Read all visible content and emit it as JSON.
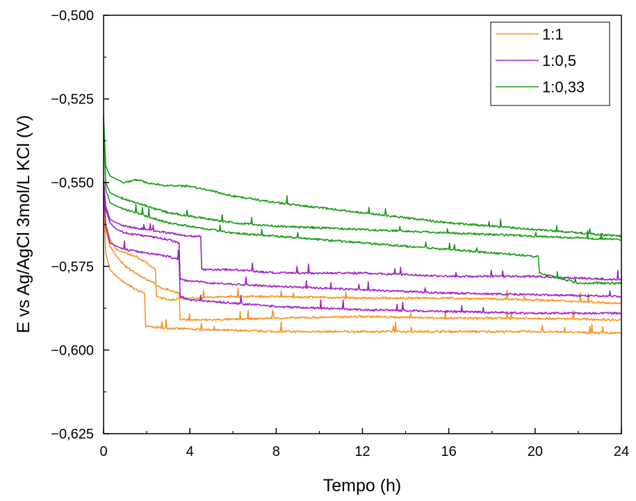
{
  "chart_data": {
    "type": "line",
    "title": "",
    "xlabel": "Tempo (h)",
    "ylabel": "E vs Ag/AgCl 3mol/L KCl (V)",
    "xlim": [
      0,
      24
    ],
    "ylim": [
      -0.625,
      -0.5
    ],
    "x_ticks": [
      0,
      4,
      8,
      12,
      16,
      20,
      24
    ],
    "x_tick_labels": [
      "0",
      "4",
      "8",
      "12",
      "16",
      "20",
      "24"
    ],
    "y_ticks": [
      -0.5,
      -0.525,
      -0.55,
      -0.575,
      -0.6,
      -0.625
    ],
    "y_tick_labels": [
      "−0,500",
      "−0,525",
      "−0,550",
      "−0,575",
      "−0,600",
      "−0,625"
    ],
    "grid": false,
    "legend_position": "top-right",
    "legend": [
      {
        "label": "1:1",
        "color": "#F7931E"
      },
      {
        "label": "1:0,5",
        "color": "#A020C8"
      },
      {
        "label": "1:0,33",
        "color": "#179A17"
      }
    ],
    "series": [
      {
        "name": "1:1",
        "color": "#F7931E",
        "x": [
          0,
          0.1,
          0.3,
          0.6,
          1.0,
          1.5,
          1.9,
          1.95,
          3,
          5,
          8,
          12,
          16,
          20,
          24
        ],
        "y": [
          -0.554,
          -0.571,
          -0.576,
          -0.578,
          -0.58,
          -0.582,
          -0.583,
          -0.593,
          -0.5935,
          -0.594,
          -0.5945,
          -0.5945,
          -0.5945,
          -0.5945,
          -0.595
        ]
      },
      {
        "name": "1:1",
        "color": "#F7931E",
        "x": [
          0,
          0.1,
          0.3,
          0.6,
          1.0,
          1.5,
          2.0,
          2.4,
          2.45,
          3,
          3.5,
          3.55,
          5,
          8,
          12,
          16,
          20,
          24
        ],
        "y": [
          -0.552,
          -0.564,
          -0.569,
          -0.572,
          -0.575,
          -0.577,
          -0.579,
          -0.58,
          -0.581,
          -0.582,
          -0.583,
          -0.591,
          -0.591,
          -0.5905,
          -0.59,
          -0.5905,
          -0.5905,
          -0.591
        ]
      },
      {
        "name": "1:1",
        "color": "#F7931E",
        "x": [
          0,
          0.1,
          0.3,
          0.6,
          1.0,
          1.5,
          2.0,
          2.4,
          2.45,
          3,
          4,
          6,
          8,
          12,
          16,
          20,
          24
        ],
        "y": [
          -0.553,
          -0.562,
          -0.567,
          -0.57,
          -0.571,
          -0.572,
          -0.574,
          -0.576,
          -0.584,
          -0.585,
          -0.5845,
          -0.584,
          -0.584,
          -0.5845,
          -0.5845,
          -0.585,
          -0.586
        ]
      },
      {
        "name": "1:0,5",
        "color": "#A020C8",
        "x": [
          0,
          0.1,
          0.3,
          0.6,
          1.0,
          2.0,
          3.0,
          3.5,
          3.55,
          5,
          8,
          12,
          16,
          20,
          24
        ],
        "y": [
          -0.549,
          -0.558,
          -0.562,
          -0.564,
          -0.565,
          -0.566,
          -0.567,
          -0.568,
          -0.579,
          -0.58,
          -0.581,
          -0.582,
          -0.583,
          -0.5835,
          -0.584
        ]
      },
      {
        "name": "1:0,5",
        "color": "#A020C8",
        "x": [
          0,
          0.1,
          0.3,
          0.6,
          1.0,
          2.0,
          3.0,
          4.0,
          4.5,
          4.55,
          6,
          8,
          12,
          16,
          20,
          24
        ],
        "y": [
          -0.549,
          -0.557,
          -0.561,
          -0.562,
          -0.563,
          -0.564,
          -0.565,
          -0.566,
          -0.566,
          -0.576,
          -0.576,
          -0.577,
          -0.577,
          -0.578,
          -0.578,
          -0.579
        ]
      },
      {
        "name": "1:0,5",
        "color": "#A020C8",
        "x": [
          0,
          0.1,
          0.3,
          0.6,
          1.0,
          2.0,
          3.0,
          3.5,
          3.55,
          4,
          6,
          8,
          12,
          16,
          20,
          24
        ],
        "y": [
          -0.549,
          -0.563,
          -0.568,
          -0.569,
          -0.57,
          -0.571,
          -0.572,
          -0.573,
          -0.584,
          -0.585,
          -0.586,
          -0.587,
          -0.588,
          -0.5885,
          -0.589,
          -0.589
        ]
      },
      {
        "name": "1:0,33",
        "color": "#179A17",
        "x": [
          0,
          0.1,
          0.3,
          0.6,
          1.0,
          1.5,
          2.0,
          3,
          4,
          6,
          8,
          12,
          16,
          20,
          22,
          24
        ],
        "y": [
          -0.53,
          -0.545,
          -0.548,
          -0.549,
          -0.55,
          -0.549,
          -0.55,
          -0.551,
          -0.551,
          -0.554,
          -0.556,
          -0.559,
          -0.562,
          -0.564,
          -0.565,
          -0.566
        ]
      },
      {
        "name": "1:0,33",
        "color": "#179A17",
        "x": [
          0,
          0.1,
          0.3,
          0.6,
          1.0,
          2.0,
          3,
          4,
          6,
          8,
          12,
          16,
          20,
          24
        ],
        "y": [
          -0.531,
          -0.55,
          -0.553,
          -0.554,
          -0.555,
          -0.557,
          -0.559,
          -0.56,
          -0.562,
          -0.563,
          -0.564,
          -0.565,
          -0.566,
          -0.567
        ]
      },
      {
        "name": "1:0,33",
        "color": "#179A17",
        "x": [
          0,
          0.1,
          0.3,
          0.6,
          1.0,
          2.0,
          3,
          4,
          6,
          8,
          12,
          16,
          20,
          20.15,
          20.2,
          22,
          24
        ],
        "y": [
          -0.531,
          -0.552,
          -0.556,
          -0.557,
          -0.558,
          -0.56,
          -0.562,
          -0.563,
          -0.565,
          -0.566,
          -0.568,
          -0.57,
          -0.572,
          -0.572,
          -0.577,
          -0.58,
          -0.58
        ]
      }
    ]
  }
}
